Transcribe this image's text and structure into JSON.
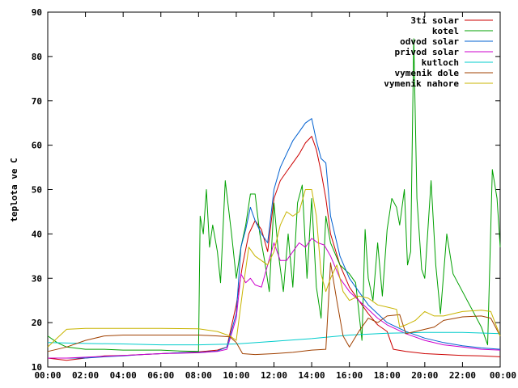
{
  "chart_data": {
    "type": "line",
    "title": "",
    "xlabel": "",
    "ylabel": "teplota ve C",
    "ylim": [
      10,
      90
    ],
    "xlim": [
      "00:00",
      "24:00"
    ],
    "grid": false,
    "legend_position": "top-right",
    "y_ticks": [
      "10",
      "20",
      "30",
      "40",
      "50",
      "60",
      "70",
      "80",
      "90"
    ],
    "x_ticks": [
      "00:00",
      "02:00",
      "04:00",
      "06:00",
      "08:00",
      "10:00",
      "12:00",
      "14:00",
      "16:00",
      "18:00",
      "20:00",
      "22:00",
      "00:00"
    ],
    "series": [
      {
        "name": "3ti solar",
        "color": "#cc0000",
        "points": [
          [
            "00:00",
            12.0
          ],
          [
            "01:00",
            11.5
          ],
          [
            "02:00",
            12.0
          ],
          [
            "03:00",
            12.5
          ],
          [
            "04:00",
            12.6
          ],
          [
            "05:00",
            12.8
          ],
          [
            "06:00",
            13.0
          ],
          [
            "07:00",
            13.2
          ],
          [
            "08:00",
            13.4
          ],
          [
            "09:00",
            13.8
          ],
          [
            "09:30",
            14.5
          ],
          [
            "10:00",
            24.0
          ],
          [
            "10:20",
            33.0
          ],
          [
            "10:40",
            40.0
          ],
          [
            "11:00",
            43.0
          ],
          [
            "11:20",
            41.0
          ],
          [
            "11:40",
            36.0
          ],
          [
            "12:00",
            48.0
          ],
          [
            "12:20",
            52.0
          ],
          [
            "12:40",
            54.0
          ],
          [
            "13:00",
            56.0
          ],
          [
            "13:20",
            58.0
          ],
          [
            "13:40",
            60.5
          ],
          [
            "14:00",
            62.0
          ],
          [
            "14:15",
            59.0
          ],
          [
            "14:30",
            54.0
          ],
          [
            "14:45",
            48.0
          ],
          [
            "15:00",
            40.0
          ],
          [
            "15:30",
            33.0
          ],
          [
            "16:00",
            28.0
          ],
          [
            "16:30",
            25.0
          ],
          [
            "17:00",
            22.0
          ],
          [
            "17:30",
            19.5
          ],
          [
            "18:00",
            18.0
          ],
          [
            "18:20",
            14.0
          ],
          [
            "19:00",
            13.5
          ],
          [
            "20:00",
            13.0
          ],
          [
            "21:00",
            12.8
          ],
          [
            "22:00",
            12.6
          ],
          [
            "23:00",
            12.5
          ],
          [
            "24:00",
            12.3
          ]
        ]
      },
      {
        "name": "kotel",
        "color": "#00a000",
        "points": [
          [
            "00:00",
            17.0
          ],
          [
            "00:30",
            15.5
          ],
          [
            "01:00",
            14.5
          ],
          [
            "02:00",
            14.0
          ],
          [
            "03:00",
            14.0
          ],
          [
            "04:00",
            13.8
          ],
          [
            "05:00",
            13.8
          ],
          [
            "06:00",
            13.8
          ],
          [
            "07:00",
            13.6
          ],
          [
            "08:00",
            13.5
          ],
          [
            "08:05",
            44.0
          ],
          [
            "08:15",
            40.0
          ],
          [
            "08:25",
            50.0
          ],
          [
            "08:35",
            37.0
          ],
          [
            "08:45",
            42.0
          ],
          [
            "09:00",
            36.0
          ],
          [
            "09:10",
            29.0
          ],
          [
            "09:25",
            52.0
          ],
          [
            "09:45",
            40.0
          ],
          [
            "10:00",
            30.0
          ],
          [
            "10:15",
            37.0
          ],
          [
            "10:30",
            42.0
          ],
          [
            "10:45",
            49.0
          ],
          [
            "11:00",
            49.0
          ],
          [
            "11:15",
            40.0
          ],
          [
            "11:30",
            34.0
          ],
          [
            "11:45",
            27.0
          ],
          [
            "12:00",
            47.0
          ],
          [
            "12:15",
            35.0
          ],
          [
            "12:30",
            27.0
          ],
          [
            "12:45",
            40.0
          ],
          [
            "13:00",
            28.0
          ],
          [
            "13:15",
            47.0
          ],
          [
            "13:30",
            51.0
          ],
          [
            "13:45",
            30.0
          ],
          [
            "14:00",
            48.0
          ],
          [
            "14:15",
            28.0
          ],
          [
            "14:30",
            21.0
          ],
          [
            "14:45",
            44.0
          ],
          [
            "15:00",
            38.0
          ],
          [
            "15:30",
            33.0
          ],
          [
            "16:00",
            31.0
          ],
          [
            "16:20",
            29.0
          ],
          [
            "16:40",
            16.0
          ],
          [
            "16:50",
            41.0
          ],
          [
            "17:00",
            30.0
          ],
          [
            "17:15",
            25.0
          ],
          [
            "17:30",
            38.0
          ],
          [
            "17:45",
            26.0
          ],
          [
            "18:00",
            41.0
          ],
          [
            "18:15",
            48.0
          ],
          [
            "18:30",
            46.0
          ],
          [
            "18:40",
            42.0
          ],
          [
            "18:55",
            50.0
          ],
          [
            "19:05",
            33.0
          ],
          [
            "19:15",
            36.0
          ],
          [
            "19:25",
            84.0
          ],
          [
            "19:35",
            48.0
          ],
          [
            "19:50",
            32.0
          ],
          [
            "20:00",
            30.0
          ],
          [
            "20:20",
            52.0
          ],
          [
            "20:35",
            33.0
          ],
          [
            "20:50",
            22.0
          ],
          [
            "21:10",
            40.0
          ],
          [
            "21:30",
            31.0
          ],
          [
            "22:00",
            27.0
          ],
          [
            "22:30",
            23.0
          ],
          [
            "23:00",
            19.0
          ],
          [
            "23:20",
            15.0
          ],
          [
            "23:35",
            54.5
          ],
          [
            "23:50",
            48.0
          ],
          [
            "24:00",
            37.0
          ]
        ]
      },
      {
        "name": "odvod solar",
        "color": "#0060d0",
        "points": [
          [
            "00:00",
            12.0
          ],
          [
            "01:00",
            12.0
          ],
          [
            "02:00",
            12.0
          ],
          [
            "03:00",
            12.3
          ],
          [
            "04:00",
            12.5
          ],
          [
            "05:00",
            12.8
          ],
          [
            "06:00",
            13.0
          ],
          [
            "07:00",
            13.2
          ],
          [
            "08:00",
            13.3
          ],
          [
            "09:00",
            13.6
          ],
          [
            "09:30",
            14.5
          ],
          [
            "10:00",
            22.0
          ],
          [
            "10:15",
            37.0
          ],
          [
            "10:30",
            41.0
          ],
          [
            "10:45",
            46.0
          ],
          [
            "11:00",
            43.0
          ],
          [
            "11:20",
            40.0
          ],
          [
            "11:40",
            38.0
          ],
          [
            "12:00",
            50.0
          ],
          [
            "12:20",
            55.0
          ],
          [
            "12:40",
            58.0
          ],
          [
            "13:00",
            61.0
          ],
          [
            "13:20",
            63.0
          ],
          [
            "13:40",
            65.0
          ],
          [
            "14:00",
            66.0
          ],
          [
            "14:15",
            61.0
          ],
          [
            "14:30",
            57.0
          ],
          [
            "14:45",
            56.0
          ],
          [
            "15:00",
            44.0
          ],
          [
            "15:30",
            35.0
          ],
          [
            "16:00",
            30.0
          ],
          [
            "16:30",
            27.0
          ],
          [
            "17:00",
            24.0
          ],
          [
            "17:30",
            22.0
          ],
          [
            "18:00",
            20.0
          ],
          [
            "19:00",
            18.0
          ],
          [
            "20:00",
            16.5
          ],
          [
            "21:00",
            15.5
          ],
          [
            "22:00",
            14.8
          ],
          [
            "23:00",
            14.3
          ],
          [
            "24:00",
            14.0
          ]
        ]
      },
      {
        "name": "privod solar",
        "color": "#cc00cc",
        "points": [
          [
            "00:00",
            12.0
          ],
          [
            "01:00",
            12.0
          ],
          [
            "02:00",
            12.2
          ],
          [
            "03:00",
            12.4
          ],
          [
            "04:00",
            12.6
          ],
          [
            "05:00",
            12.8
          ],
          [
            "06:00",
            13.0
          ],
          [
            "07:00",
            13.1
          ],
          [
            "08:00",
            13.2
          ],
          [
            "09:00",
            13.5
          ],
          [
            "09:30",
            14.0
          ],
          [
            "10:00",
            21.0
          ],
          [
            "10:15",
            31.0
          ],
          [
            "10:30",
            29.0
          ],
          [
            "10:45",
            30.0
          ],
          [
            "11:00",
            28.5
          ],
          [
            "11:20",
            28.0
          ],
          [
            "11:40",
            33.0
          ],
          [
            "12:00",
            38.0
          ],
          [
            "12:20",
            34.0
          ],
          [
            "12:40",
            34.0
          ],
          [
            "13:00",
            36.0
          ],
          [
            "13:20",
            38.0
          ],
          [
            "13:40",
            37.0
          ],
          [
            "14:00",
            39.0
          ],
          [
            "14:20",
            38.0
          ],
          [
            "14:40",
            37.5
          ],
          [
            "15:00",
            35.0
          ],
          [
            "15:30",
            30.0
          ],
          [
            "16:00",
            27.0
          ],
          [
            "16:30",
            25.0
          ],
          [
            "17:00",
            23.0
          ],
          [
            "17:30",
            21.0
          ],
          [
            "18:00",
            19.5
          ],
          [
            "19:00",
            17.5
          ],
          [
            "20:00",
            16.0
          ],
          [
            "21:00",
            15.0
          ],
          [
            "22:00",
            14.5
          ],
          [
            "23:00",
            14.0
          ],
          [
            "24:00",
            13.8
          ]
        ]
      },
      {
        "name": "kutloch",
        "color": "#00cccc",
        "points": [
          [
            "00:00",
            15.5
          ],
          [
            "02:00",
            15.3
          ],
          [
            "04:00",
            15.2
          ],
          [
            "06:00",
            15.0
          ],
          [
            "08:00",
            15.0
          ],
          [
            "10:00",
            15.2
          ],
          [
            "12:00",
            15.8
          ],
          [
            "14:00",
            16.4
          ],
          [
            "16:00",
            17.2
          ],
          [
            "18:00",
            17.6
          ],
          [
            "20:00",
            17.8
          ],
          [
            "22:00",
            17.8
          ],
          [
            "24:00",
            17.5
          ]
        ]
      },
      {
        "name": "vymenik dole",
        "color": "#a04000",
        "points": [
          [
            "00:00",
            13.5
          ],
          [
            "01:00",
            14.5
          ],
          [
            "02:00",
            16.0
          ],
          [
            "03:00",
            17.0
          ],
          [
            "04:00",
            17.2
          ],
          [
            "06:00",
            17.2
          ],
          [
            "08:00",
            17.2
          ],
          [
            "09:00",
            17.0
          ],
          [
            "09:40",
            16.8
          ],
          [
            "10:00",
            15.5
          ],
          [
            "10:20",
            13.0
          ],
          [
            "11:00",
            12.8
          ],
          [
            "12:00",
            13.0
          ],
          [
            "13:00",
            13.3
          ],
          [
            "14:00",
            13.8
          ],
          [
            "14:45",
            14.0
          ],
          [
            "15:00",
            33.5
          ],
          [
            "15:20",
            25.0
          ],
          [
            "15:40",
            17.0
          ],
          [
            "16:00",
            14.5
          ],
          [
            "16:30",
            18.0
          ],
          [
            "17:00",
            21.0
          ],
          [
            "17:30",
            20.0
          ],
          [
            "18:00",
            21.5
          ],
          [
            "18:40",
            21.8
          ],
          [
            "19:00",
            17.5
          ],
          [
            "19:30",
            18.0
          ],
          [
            "20:00",
            18.5
          ],
          [
            "20:30",
            19.0
          ],
          [
            "21:00",
            20.5
          ],
          [
            "22:00",
            21.3
          ],
          [
            "23:00",
            21.5
          ],
          [
            "23:30",
            21.0
          ],
          [
            "24:00",
            17.0
          ]
        ]
      },
      {
        "name": "vymenik nahore",
        "color": "#c8b400",
        "points": [
          [
            "00:00",
            14.5
          ],
          [
            "00:30",
            16.5
          ],
          [
            "01:00",
            18.5
          ],
          [
            "02:00",
            18.7
          ],
          [
            "04:00",
            18.7
          ],
          [
            "06:00",
            18.7
          ],
          [
            "08:00",
            18.6
          ],
          [
            "09:00",
            18.0
          ],
          [
            "09:40",
            17.0
          ],
          [
            "10:00",
            16.0
          ],
          [
            "10:20",
            27.0
          ],
          [
            "10:40",
            37.0
          ],
          [
            "11:00",
            35.0
          ],
          [
            "11:20",
            34.0
          ],
          [
            "11:40",
            33.0
          ],
          [
            "12:00",
            36.0
          ],
          [
            "12:20",
            42.0
          ],
          [
            "12:40",
            45.0
          ],
          [
            "13:00",
            44.0
          ],
          [
            "13:20",
            45.0
          ],
          [
            "13:40",
            50.0
          ],
          [
            "14:00",
            50.0
          ],
          [
            "14:15",
            44.0
          ],
          [
            "14:30",
            31.0
          ],
          [
            "14:45",
            27.0
          ],
          [
            "15:00",
            30.0
          ],
          [
            "15:20",
            33.0
          ],
          [
            "15:40",
            27.0
          ],
          [
            "16:00",
            25.0
          ],
          [
            "16:30",
            26.0
          ],
          [
            "17:00",
            25.5
          ],
          [
            "17:30",
            24.0
          ],
          [
            "18:00",
            23.5
          ],
          [
            "18:30",
            23.0
          ],
          [
            "18:40",
            19.0
          ],
          [
            "19:00",
            19.5
          ],
          [
            "19:30",
            20.5
          ],
          [
            "20:00",
            22.5
          ],
          [
            "20:30",
            21.5
          ],
          [
            "21:00",
            21.5
          ],
          [
            "22:00",
            22.5
          ],
          [
            "23:00",
            22.8
          ],
          [
            "23:30",
            22.5
          ],
          [
            "24:00",
            17.0
          ]
        ]
      }
    ]
  }
}
